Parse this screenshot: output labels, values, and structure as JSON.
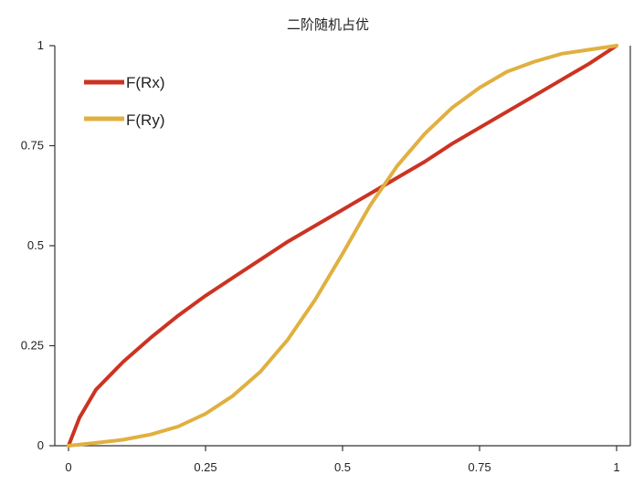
{
  "chart_data": {
    "type": "line",
    "title": "二阶随机占优",
    "xlabel": "",
    "ylabel": "",
    "xlim": [
      0,
      1
    ],
    "ylim": [
      0,
      1
    ],
    "x_ticks": [
      "0",
      "0.25",
      "0.5",
      "0.75",
      "1"
    ],
    "y_ticks": [
      "0",
      "0.25",
      "0.5",
      "0.75",
      "1"
    ],
    "grid": false,
    "legend_position": "top-left",
    "series": [
      {
        "name": "F(Rx)",
        "color": "#cc3322",
        "x": [
          0,
          0.02,
          0.05,
          0.1,
          0.15,
          0.2,
          0.25,
          0.3,
          0.35,
          0.4,
          0.45,
          0.5,
          0.55,
          0.6,
          0.65,
          0.7,
          0.75,
          0.8,
          0.85,
          0.9,
          0.95,
          1
        ],
        "y": [
          0,
          0.07,
          0.14,
          0.21,
          0.27,
          0.325,
          0.375,
          0.42,
          0.465,
          0.51,
          0.55,
          0.59,
          0.63,
          0.67,
          0.71,
          0.755,
          0.795,
          0.835,
          0.875,
          0.915,
          0.955,
          1
        ]
      },
      {
        "name": "F(Ry)",
        "color": "#e0b040",
        "x": [
          0,
          0.05,
          0.1,
          0.15,
          0.2,
          0.25,
          0.3,
          0.35,
          0.4,
          0.45,
          0.5,
          0.55,
          0.6,
          0.65,
          0.7,
          0.75,
          0.8,
          0.85,
          0.9,
          0.95,
          1
        ],
        "y": [
          0,
          0.007,
          0.015,
          0.028,
          0.048,
          0.08,
          0.125,
          0.185,
          0.265,
          0.365,
          0.48,
          0.6,
          0.7,
          0.78,
          0.845,
          0.895,
          0.935,
          0.96,
          0.98,
          0.99,
          1
        ]
      }
    ]
  }
}
